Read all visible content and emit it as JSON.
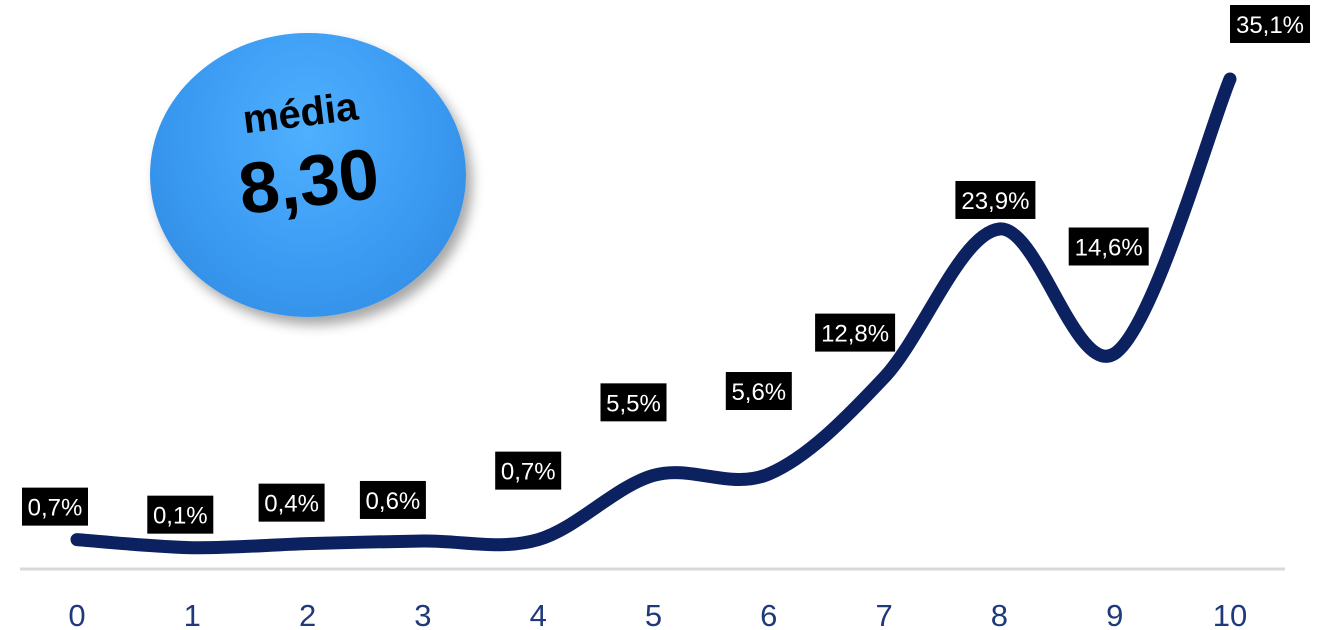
{
  "average_badge": {
    "label": "média",
    "value": "8,30",
    "color": "#3a9af2"
  },
  "chart_data": {
    "type": "line",
    "categories": [
      "0",
      "1",
      "2",
      "3",
      "4",
      "5",
      "6",
      "7",
      "8",
      "9",
      "10"
    ],
    "series": [
      {
        "values": [
          0.7,
          0.1,
          0.4,
          0.6,
          0.7,
          5.5,
          5.6,
          12.8,
          23.9,
          14.6,
          35.1
        ],
        "labels": [
          "0,7%",
          "0,1%",
          "0,4%",
          "0,6%",
          "0,7%",
          "5,5%",
          "5,6%",
          "12,8%",
          "23,9%",
          "14,6%",
          "35,1%"
        ],
        "color": "#0b2160"
      }
    ],
    "title": "",
    "xlabel": "",
    "ylabel": "",
    "ylim": [
      0,
      40
    ],
    "grid": false,
    "legend": "none",
    "data_label_style": "white text on black box"
  }
}
